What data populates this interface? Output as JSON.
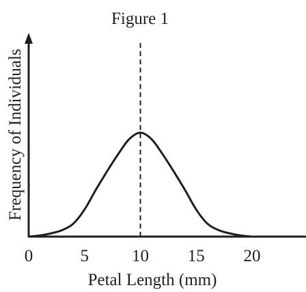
{
  "chart_data": {
    "type": "line",
    "title": "Figure 1",
    "xlabel": "Petal Length (mm)",
    "ylabel": "Frequency of Individuals",
    "xlim": [
      0,
      25
    ],
    "ylim": [
      0,
      1
    ],
    "x_ticks": [
      "0",
      "5",
      "10",
      "15",
      "20"
    ],
    "y_ticks": [],
    "grid": false,
    "legend": "none",
    "series": [
      {
        "x": [
          0,
          1,
          2,
          3,
          4,
          5,
          6,
          7,
          8,
          9,
          10,
          11,
          12,
          13,
          14,
          15,
          16,
          17,
          18,
          19,
          20
        ],
        "y": [
          0,
          0.01,
          0.03,
          0.06,
          0.12,
          0.25,
          0.43,
          0.6,
          0.76,
          0.9,
          0.96,
          0.9,
          0.76,
          0.6,
          0.43,
          0.25,
          0.12,
          0.06,
          0.03,
          0.01,
          0
        ]
      }
    ],
    "annotations": [
      {
        "type": "vertical-dashed-line",
        "x": 10
      }
    ],
    "colors": {
      "line": "#1f1f1f",
      "axis": "#1f1f1f"
    }
  }
}
